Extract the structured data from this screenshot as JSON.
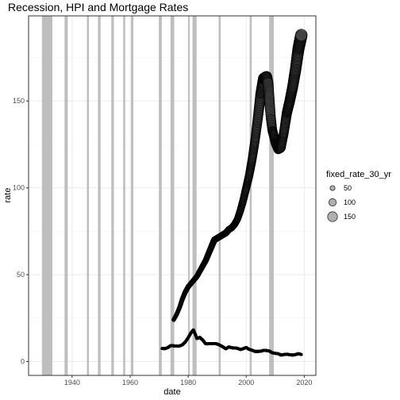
{
  "chart_data": {
    "type": "scatter",
    "title": "Recession, HPI and Mortgage Rates",
    "xlabel": "date",
    "ylabel": "rate",
    "xlim": [
      1925,
      2024
    ],
    "ylim": [
      -8,
      199
    ],
    "x_ticks": [
      1940,
      1960,
      1980,
      2000,
      2020
    ],
    "y_ticks": [
      0,
      50,
      100,
      150
    ],
    "grid": true,
    "legend_position": "right",
    "legend": {
      "title": "fixed_rate_30_yr",
      "entries": [
        {
          "label": "50",
          "value": 50
        },
        {
          "label": "100",
          "value": 100
        },
        {
          "label": "150",
          "value": 150
        }
      ]
    },
    "recessions": [
      [
        1929.6,
        1933.2
      ],
      [
        1937.4,
        1938.5
      ],
      [
        1945.1,
        1945.8
      ],
      [
        1948.9,
        1949.8
      ],
      [
        1953.5,
        1954.4
      ],
      [
        1957.6,
        1958.3
      ],
      [
        1960.3,
        1961.1
      ],
      [
        1969.9,
        1970.9
      ],
      [
        1973.9,
        1975.2
      ],
      [
        1980.0,
        1980.5
      ],
      [
        1981.5,
        1982.9
      ],
      [
        1990.5,
        1991.2
      ],
      [
        2001.2,
        2001.9
      ],
      [
        2007.9,
        2009.5
      ]
    ],
    "series": [
      {
        "name": "hpi",
        "points": [
          [
            1975.0,
            24
          ],
          [
            1976.0,
            27
          ],
          [
            1977.0,
            31
          ],
          [
            1978.0,
            36
          ],
          [
            1979.0,
            40
          ],
          [
            1980.0,
            43
          ],
          [
            1981.0,
            45
          ],
          [
            1982.0,
            47
          ],
          [
            1983.0,
            49
          ],
          [
            1984.0,
            52
          ],
          [
            1985.0,
            55
          ],
          [
            1986.0,
            58
          ],
          [
            1987.0,
            62
          ],
          [
            1988.0,
            66
          ],
          [
            1989.0,
            70
          ],
          [
            1990.0,
            71
          ],
          [
            1991.0,
            72
          ],
          [
            1992.0,
            73
          ],
          [
            1993.0,
            74
          ],
          [
            1994.0,
            76
          ],
          [
            1995.0,
            77
          ],
          [
            1996.0,
            79
          ],
          [
            1997.0,
            82
          ],
          [
            1998.0,
            87
          ],
          [
            1999.0,
            93
          ],
          [
            2000.0,
            100
          ],
          [
            2001.0,
            107
          ],
          [
            2002.0,
            116
          ],
          [
            2003.0,
            127
          ],
          [
            2004.0,
            140
          ],
          [
            2005.0,
            154
          ],
          [
            2006.0,
            163
          ],
          [
            2007.0,
            164
          ],
          [
            2007.5,
            160
          ],
          [
            2008.0,
            150
          ],
          [
            2008.5,
            140
          ],
          [
            2009.0,
            133
          ],
          [
            2009.5,
            130
          ],
          [
            2010.0,
            126
          ],
          [
            2011.0,
            122
          ],
          [
            2012.0,
            123
          ],
          [
            2013.0,
            132
          ],
          [
            2014.0,
            143
          ],
          [
            2015.0,
            150
          ],
          [
            2016.0,
            158
          ],
          [
            2017.0,
            168
          ],
          [
            2018.0,
            180
          ],
          [
            2019.0,
            188
          ]
        ]
      },
      {
        "name": "rate",
        "points": [
          [
            1971.0,
            7.5
          ],
          [
            1972.0,
            7.4
          ],
          [
            1973.0,
            8.0
          ],
          [
            1974.0,
            9.2
          ],
          [
            1975.0,
            9.0
          ],
          [
            1976.0,
            8.9
          ],
          [
            1977.0,
            8.9
          ],
          [
            1978.0,
            9.6
          ],
          [
            1979.0,
            11.2
          ],
          [
            1980.0,
            13.7
          ],
          [
            1981.0,
            16.6
          ],
          [
            1981.8,
            18.2
          ],
          [
            1982.5,
            15.5
          ],
          [
            1983.0,
            13.2
          ],
          [
            1984.0,
            13.9
          ],
          [
            1985.0,
            12.4
          ],
          [
            1986.0,
            10.2
          ],
          [
            1987.0,
            10.2
          ],
          [
            1988.0,
            10.3
          ],
          [
            1989.0,
            10.3
          ],
          [
            1990.0,
            10.1
          ],
          [
            1991.0,
            9.3
          ],
          [
            1992.0,
            8.4
          ],
          [
            1993.0,
            7.3
          ],
          [
            1994.0,
            8.4
          ],
          [
            1995.0,
            7.9
          ],
          [
            1996.0,
            7.8
          ],
          [
            1997.0,
            7.6
          ],
          [
            1998.0,
            6.9
          ],
          [
            1999.0,
            7.4
          ],
          [
            2000.0,
            8.1
          ],
          [
            2001.0,
            7.0
          ],
          [
            2002.0,
            6.5
          ],
          [
            2003.0,
            5.8
          ],
          [
            2004.0,
            5.8
          ],
          [
            2005.0,
            5.9
          ],
          [
            2006.0,
            6.4
          ],
          [
            2007.0,
            6.3
          ],
          [
            2008.0,
            6.0
          ],
          [
            2009.0,
            5.0
          ],
          [
            2010.0,
            4.7
          ],
          [
            2011.0,
            4.5
          ],
          [
            2012.0,
            3.7
          ],
          [
            2013.0,
            4.0
          ],
          [
            2014.0,
            4.2
          ],
          [
            2015.0,
            3.9
          ],
          [
            2016.0,
            3.7
          ],
          [
            2017.0,
            4.0
          ],
          [
            2018.0,
            4.5
          ],
          [
            2019.0,
            4.0
          ]
        ]
      }
    ]
  }
}
